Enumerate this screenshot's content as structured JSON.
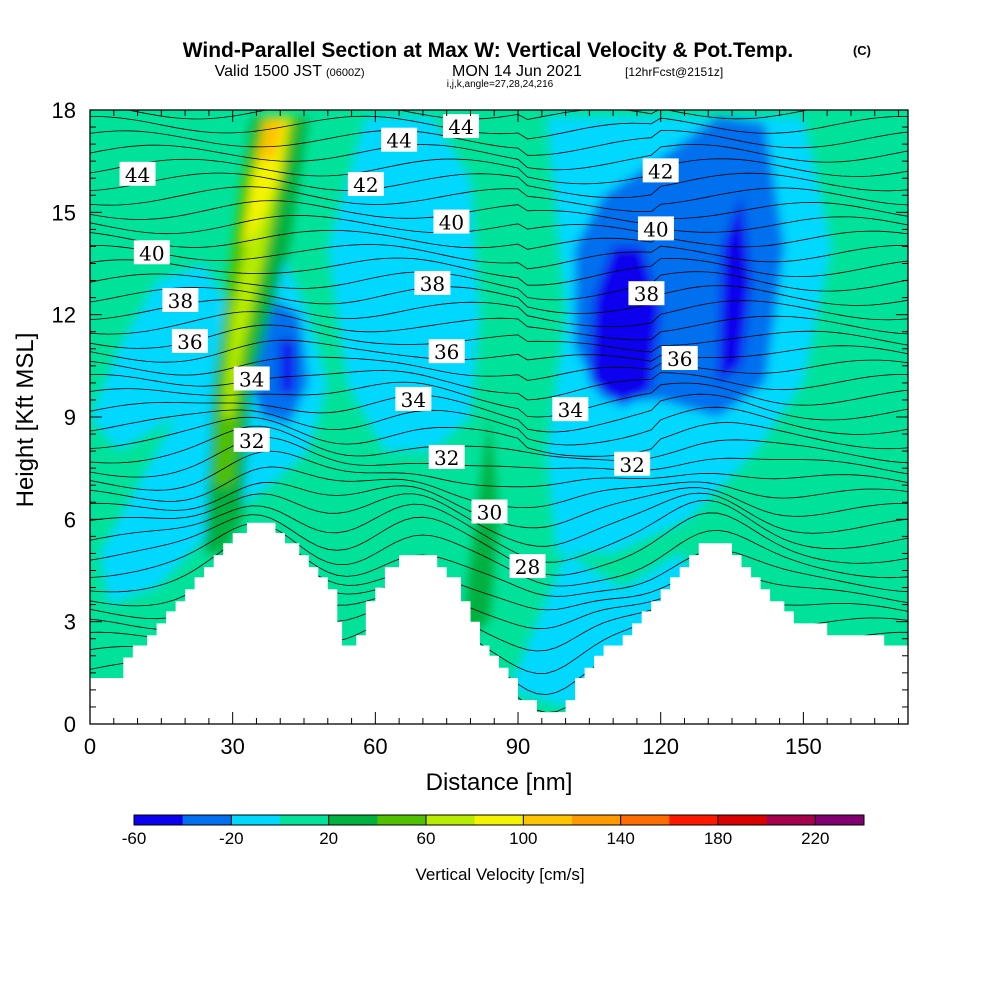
{
  "chart_data": {
    "type": "heatmap",
    "title": "Wind-Parallel Section at Max W: Vertical Velocity & Pot.Temp.",
    "title_unit": "(C)",
    "subtitle_valid": "Valid 1500 JST",
    "subtitle_utc": "(0600Z)",
    "subtitle_date": "MON 14 Jun 2021",
    "subtitle_fcst": "[12hrFcst@2151z]",
    "subtitle_indices": "i,j,k,angle=27,28,24,216",
    "xlabel": "Distance [nm]",
    "ylabel": "Height [Kft MSL]",
    "xlim": [
      0,
      172
    ],
    "ylim": [
      0,
      18
    ],
    "x_ticks": [
      "0",
      "30",
      "60",
      "90",
      "120",
      "150"
    ],
    "y_ticks": [
      "0",
      "3",
      "6",
      "9",
      "12",
      "15",
      "18"
    ],
    "colorbar": {
      "label": "Vertical Velocity [cm/s]",
      "tick_labels": [
        "-60",
        "-20",
        "20",
        "60",
        "100",
        "140",
        "180",
        "220"
      ],
      "colors": [
        "#0a00ee",
        "#0070ee",
        "#00d8ff",
        "#00e29a",
        "#00b040",
        "#50c000",
        "#b8ec00",
        "#f4f400",
        "#ffc400",
        "#ff9a00",
        "#ff6c00",
        "#ff1800",
        "#d80000",
        "#a4004c",
        "#800070"
      ]
    },
    "theta_labels": [
      {
        "text": "44",
        "x": 10,
        "y": 16.1
      },
      {
        "text": "44",
        "x": 65,
        "y": 17.1
      },
      {
        "text": "44",
        "x": 78,
        "y": 17.5
      },
      {
        "text": "42",
        "x": 58,
        "y": 15.8
      },
      {
        "text": "42",
        "x": 120,
        "y": 16.2
      },
      {
        "text": "40",
        "x": 13,
        "y": 13.8
      },
      {
        "text": "40",
        "x": 76,
        "y": 14.7
      },
      {
        "text": "40",
        "x": 119,
        "y": 14.5
      },
      {
        "text": "38",
        "x": 19,
        "y": 12.4
      },
      {
        "text": "38",
        "x": 72,
        "y": 12.9
      },
      {
        "text": "38",
        "x": 117,
        "y": 12.6
      },
      {
        "text": "36",
        "x": 21,
        "y": 11.2
      },
      {
        "text": "36",
        "x": 75,
        "y": 10.9
      },
      {
        "text": "36",
        "x": 124,
        "y": 10.7
      },
      {
        "text": "34",
        "x": 34,
        "y": 10.1
      },
      {
        "text": "34",
        "x": 68,
        "y": 9.5
      },
      {
        "text": "34",
        "x": 101,
        "y": 9.2
      },
      {
        "text": "32",
        "x": 34,
        "y": 8.3
      },
      {
        "text": "32",
        "x": 75,
        "y": 7.8
      },
      {
        "text": "32",
        "x": 114,
        "y": 7.6
      },
      {
        "text": "30",
        "x": 84,
        "y": 6.2
      },
      {
        "text": "28",
        "x": 92,
        "y": 4.6
      }
    ],
    "terrain_kft": [
      [
        0,
        1.35
      ],
      [
        5,
        1.35
      ],
      [
        7,
        1.95
      ],
      [
        9,
        2.3
      ],
      [
        12,
        2.6
      ],
      [
        14,
        2.95
      ],
      [
        16,
        3.3
      ],
      [
        18,
        3.6
      ],
      [
        20,
        3.95
      ],
      [
        22,
        4.3
      ],
      [
        24,
        4.6
      ],
      [
        26,
        4.95
      ],
      [
        28,
        5.3
      ],
      [
        30,
        5.6
      ],
      [
        33,
        5.9
      ],
      [
        37,
        5.9
      ],
      [
        39,
        5.6
      ],
      [
        41,
        5.3
      ],
      [
        44,
        4.95
      ],
      [
        46,
        4.6
      ],
      [
        48,
        4.3
      ],
      [
        50,
        3.95
      ],
      [
        52,
        3.0
      ],
      [
        53,
        2.3
      ],
      [
        55,
        2.3
      ],
      [
        56,
        2.6
      ],
      [
        58,
        3.6
      ],
      [
        60,
        4.0
      ],
      [
        62,
        4.6
      ],
      [
        65,
        4.95
      ],
      [
        71,
        4.95
      ],
      [
        73,
        4.6
      ],
      [
        75,
        4.3
      ],
      [
        78,
        3.6
      ],
      [
        80,
        3.0
      ],
      [
        82,
        2.3
      ],
      [
        84,
        2.0
      ],
      [
        86,
        1.65
      ],
      [
        88,
        1.35
      ],
      [
        90,
        0.7
      ],
      [
        93,
        0.7
      ],
      [
        94,
        0.35
      ],
      [
        98,
        0.35
      ],
      [
        100,
        0.7
      ],
      [
        102,
        1.35
      ],
      [
        104,
        1.65
      ],
      [
        106,
        2.0
      ],
      [
        108,
        2.3
      ],
      [
        112,
        2.6
      ],
      [
        114,
        2.95
      ],
      [
        116,
        3.3
      ],
      [
        118,
        3.6
      ],
      [
        120,
        3.95
      ],
      [
        122,
        4.3
      ],
      [
        124,
        4.6
      ],
      [
        126,
        4.95
      ],
      [
        128,
        5.3
      ],
      [
        133,
        5.3
      ],
      [
        135,
        4.95
      ],
      [
        137,
        4.6
      ],
      [
        139,
        4.3
      ],
      [
        141,
        3.95
      ],
      [
        143,
        3.6
      ],
      [
        146,
        3.3
      ],
      [
        148,
        2.95
      ],
      [
        153,
        2.95
      ],
      [
        155,
        2.6
      ],
      [
        165,
        2.6
      ],
      [
        167,
        2.3
      ],
      [
        172,
        2.3
      ]
    ]
  }
}
